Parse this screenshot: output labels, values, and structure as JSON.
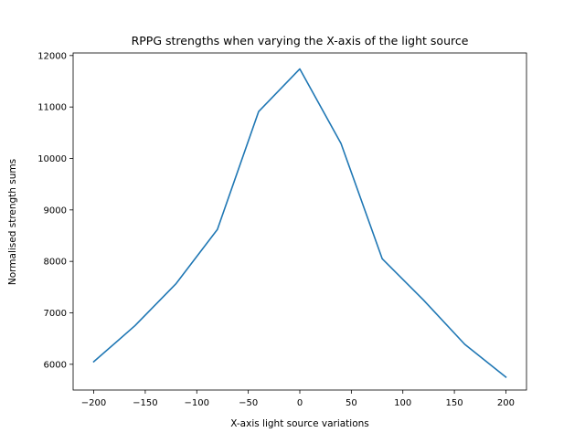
{
  "chart_data": {
    "type": "line",
    "title": "RPPG strengths when varying the X-axis of the light source",
    "xlabel": "X-axis light source variations",
    "ylabel": "Normalised strength sums",
    "x": [
      -200,
      -160,
      -120,
      -80,
      -40,
      0,
      40,
      80,
      120,
      160,
      200
    ],
    "series": [
      {
        "values": [
          6050,
          6750,
          7570,
          8620,
          10910,
          11740,
          10290,
          8050,
          7250,
          6390,
          5750
        ],
        "color": "#1f77b4"
      }
    ],
    "xlim": [
      -220,
      220
    ],
    "ylim": [
      5500,
      12050
    ],
    "xticks": [
      -200,
      -150,
      -100,
      -50,
      0,
      50,
      100,
      150,
      200
    ],
    "xtick_labels": [
      "−200",
      "−150",
      "−100",
      "−50",
      "0",
      "50",
      "100",
      "150",
      "200"
    ],
    "yticks": [
      6000,
      7000,
      8000,
      9000,
      10000,
      11000,
      12000
    ],
    "ytick_labels": [
      "6000",
      "7000",
      "8000",
      "9000",
      "10000",
      "11000",
      "12000"
    ],
    "grid": false,
    "legend": "none"
  }
}
